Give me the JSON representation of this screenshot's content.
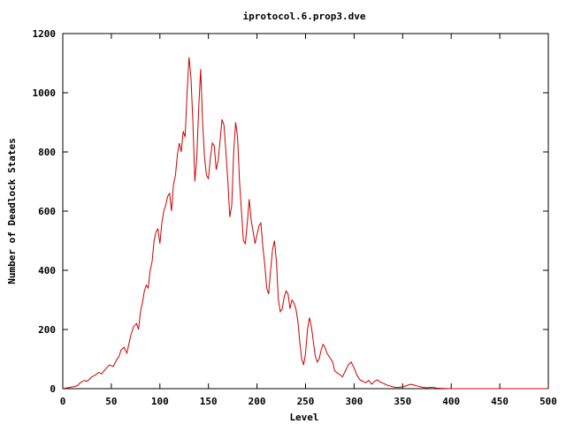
{
  "chart_data": {
    "type": "line",
    "title": "iprotocol.6.prop3.dve",
    "xlabel": "Level",
    "ylabel": "Number of Deadlock States",
    "xlim": [
      0,
      500
    ],
    "ylim": [
      0,
      1200
    ],
    "xticks": [
      0,
      50,
      100,
      150,
      200,
      250,
      300,
      350,
      400,
      450,
      500
    ],
    "yticks": [
      0,
      200,
      400,
      600,
      800,
      1000,
      1200
    ],
    "grid": false,
    "legend": "none",
    "colors": {
      "series": "#cc0000",
      "axes": "#000000"
    },
    "series": [
      {
        "x": [
          0,
          5,
          10,
          15,
          18,
          22,
          25,
          30,
          33,
          37,
          40,
          45,
          48,
          52,
          55,
          58,
          60,
          63,
          66,
          70,
          73,
          76,
          78,
          80,
          82,
          84,
          86,
          88,
          90,
          92,
          94,
          96,
          98,
          100,
          102,
          104,
          106,
          108,
          110,
          112,
          114,
          116,
          118,
          120,
          122,
          124,
          126,
          128,
          130,
          132,
          134,
          136,
          138,
          140,
          142,
          144,
          146,
          148,
          150,
          152,
          154,
          156,
          158,
          160,
          162,
          164,
          166,
          168,
          170,
          172,
          174,
          176,
          178,
          180,
          182,
          184,
          186,
          188,
          190,
          192,
          194,
          196,
          198,
          200,
          202,
          204,
          206,
          208,
          210,
          212,
          214,
          216,
          218,
          220,
          222,
          224,
          226,
          228,
          230,
          232,
          234,
          236,
          238,
          240,
          242,
          244,
          246,
          248,
          250,
          252,
          254,
          256,
          258,
          260,
          262,
          264,
          266,
          268,
          270,
          272,
          274,
          276,
          278,
          280,
          282,
          285,
          288,
          291,
          294,
          297,
          300,
          303,
          306,
          309,
          312,
          315,
          318,
          321,
          324,
          327,
          330,
          334,
          338,
          342,
          346,
          350,
          354,
          358,
          362,
          366,
          370,
          375,
          380,
          385,
          390,
          400,
          450,
          500
        ],
        "y": [
          0,
          3,
          6,
          10,
          20,
          28,
          25,
          40,
          45,
          55,
          50,
          70,
          80,
          75,
          95,
          110,
          130,
          140,
          120,
          180,
          210,
          220,
          200,
          260,
          290,
          330,
          350,
          340,
          400,
          430,
          500,
          530,
          540,
          490,
          560,
          600,
          620,
          650,
          660,
          600,
          690,
          720,
          790,
          830,
          800,
          870,
          850,
          1000,
          1120,
          1050,
          900,
          700,
          780,
          950,
          1080,
          900,
          780,
          720,
          710,
          780,
          830,
          820,
          740,
          770,
          840,
          910,
          890,
          800,
          700,
          580,
          620,
          800,
          900,
          850,
          700,
          600,
          500,
          490,
          560,
          640,
          570,
          530,
          490,
          520,
          550,
          560,
          480,
          420,
          340,
          320,
          400,
          470,
          500,
          430,
          300,
          260,
          270,
          310,
          330,
          320,
          270,
          300,
          290,
          270,
          230,
          160,
          100,
          80,
          120,
          200,
          240,
          210,
          160,
          110,
          90,
          100,
          130,
          150,
          140,
          120,
          110,
          100,
          90,
          60,
          55,
          48,
          40,
          60,
          80,
          90,
          70,
          45,
          30,
          25,
          20,
          28,
          15,
          25,
          30,
          22,
          18,
          12,
          8,
          5,
          4,
          6,
          10,
          15,
          12,
          8,
          5,
          3,
          5,
          2,
          1,
          0,
          0,
          0
        ]
      }
    ]
  }
}
